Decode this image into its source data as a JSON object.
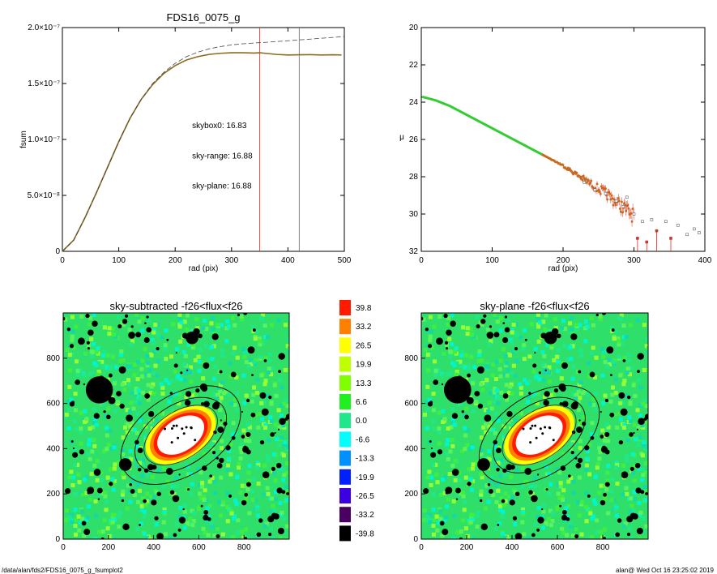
{
  "footer": {
    "path": "/data/alan/fds2/FDS16_0075_g_fsumplot2",
    "stamp": "alan@  Wed Oct 16 23:25:02 2019"
  },
  "colors": {
    "sky_range": "#e8281e",
    "sky_plane": "#33cc33",
    "fsum_curve": "#8a6b1f",
    "model": "#444444",
    "mu_points": "#c56a1c",
    "white_marker": "#666666"
  },
  "chart_data": [
    {
      "id": "fsum",
      "type": "line",
      "title": "FDS16_0075_g",
      "xlabel": "rad (pix)",
      "ylabel": "fsum",
      "xlim": [
        0,
        500
      ],
      "ylim": [
        0,
        2e-07
      ],
      "x_ticks": [
        0,
        100,
        200,
        300,
        400,
        500
      ],
      "y_ticks": [
        {
          "v": 0,
          "label": "0"
        },
        {
          "v": 5e-08,
          "label": "5.0×10⁻⁸"
        },
        {
          "v": 1e-07,
          "label": "1.0×10⁻⁷"
        },
        {
          "v": 1.5e-07,
          "label": "1.5×10⁻⁷"
        },
        {
          "v": 2e-07,
          "label": "2.0×10⁻⁷"
        }
      ],
      "series": [
        {
          "role": "measured",
          "x": [
            0,
            20,
            40,
            60,
            80,
            100,
            120,
            140,
            160,
            180,
            200,
            220,
            240,
            260,
            280,
            300,
            320,
            340,
            350,
            360,
            380,
            400,
            420,
            440,
            460,
            480,
            495
          ],
          "y": [
            0,
            1e-08,
            3e-08,
            5.2e-08,
            7.5e-08,
            9.8e-08,
            1.19e-07,
            1.36e-07,
            1.49e-07,
            1.59e-07,
            1.66e-07,
            1.71e-07,
            1.74e-07,
            1.76e-07,
            1.77e-07,
            1.775e-07,
            1.775e-07,
            1.772e-07,
            1.775e-07,
            1.77e-07,
            1.76e-07,
            1.755e-07,
            1.757e-07,
            1.758e-07,
            1.755e-07,
            1.757e-07,
            1.755e-07
          ]
        },
        {
          "role": "model",
          "style": "dashed",
          "x": [
            0,
            20,
            40,
            60,
            80,
            100,
            120,
            140,
            160,
            180,
            200,
            220,
            240,
            260,
            280,
            300,
            320,
            340,
            360,
            380,
            400,
            420,
            440,
            460,
            480,
            500
          ],
          "y": [
            0,
            1e-08,
            3e-08,
            5.2e-08,
            7.5e-08,
            9.8e-08,
            1.19e-07,
            1.36e-07,
            1.5e-07,
            1.6e-07,
            1.68e-07,
            1.74e-07,
            1.78e-07,
            1.81e-07,
            1.83e-07,
            1.845e-07,
            1.855e-07,
            1.862e-07,
            1.868e-07,
            1.875e-07,
            1.882e-07,
            1.89e-07,
            1.897e-07,
            1.905e-07,
            1.912e-07,
            1.92e-07
          ]
        }
      ],
      "vlines": [
        {
          "x": 350,
          "color": "#e8281e"
        },
        {
          "x": 420,
          "color": "#666666"
        }
      ],
      "annotations": [
        {
          "text": "skybox0: 16.83",
          "color": "#000000",
          "x": 210,
          "y": 1.1e-07
        },
        {
          "text": "sky-range: 16.88",
          "color": "#e8281e",
          "x": 210,
          "y": 8.3e-08
        },
        {
          "text": "sky-plane: 16.88",
          "color": "#33cc33",
          "x": 210,
          "y": 5.6e-08
        }
      ]
    },
    {
      "id": "mu",
      "type": "scatter",
      "title": "",
      "xlabel": "rad (pix)",
      "ylabel": "μ",
      "xlim": [
        0,
        400
      ],
      "ylim": [
        32,
        20
      ],
      "x_ticks": [
        0,
        100,
        200,
        300,
        400
      ],
      "y_ticks": [
        20,
        22,
        24,
        26,
        28,
        30,
        32
      ],
      "profile": {
        "x": [
          0,
          20,
          40,
          60,
          80,
          100,
          120,
          140,
          160,
          180,
          200,
          220,
          240,
          260,
          280,
          300
        ],
        "y": [
          23.7,
          23.9,
          24.2,
          24.6,
          25.0,
          25.4,
          25.8,
          26.2,
          26.6,
          27.0,
          27.4,
          27.9,
          28.4,
          28.9,
          29.5,
          30.1
        ]
      },
      "scatter_points": [
        {
          "x": 230,
          "y": 28.3
        },
        {
          "x": 245,
          "y": 28.7
        },
        {
          "x": 260,
          "y": 28.9
        },
        {
          "x": 275,
          "y": 29.3
        },
        {
          "x": 285,
          "y": 29.6
        },
        {
          "x": 290,
          "y": 29.1
        },
        {
          "x": 300,
          "y": 30.0
        },
        {
          "x": 305,
          "y": 31.3
        },
        {
          "x": 312,
          "y": 30.4
        },
        {
          "x": 318,
          "y": 31.5
        },
        {
          "x": 325,
          "y": 30.3
        },
        {
          "x": 332,
          "y": 30.9
        },
        {
          "x": 345,
          "y": 30.4
        },
        {
          "x": 352,
          "y": 31.3
        },
        {
          "x": 362,
          "y": 30.6
        },
        {
          "x": 375,
          "y": 31.1
        },
        {
          "x": 385,
          "y": 30.8
        },
        {
          "x": 392,
          "y": 31.0
        }
      ]
    },
    {
      "id": "sky_subtracted",
      "type": "heatmap",
      "title": "sky-subtracted -f26<flux<f26",
      "xlim": [
        0,
        1000
      ],
      "ylim": [
        0,
        1000
      ],
      "x_ticks": [
        0,
        200,
        400,
        600,
        800
      ],
      "y_ticks": [
        0,
        200,
        400,
        600,
        800
      ]
    },
    {
      "id": "sky_plane",
      "type": "heatmap",
      "title": "sky-plane -f26<flux<f26",
      "xlim": [
        0,
        1000
      ],
      "ylim": [
        0,
        1000
      ],
      "x_ticks": [
        0,
        200,
        400,
        600,
        800
      ],
      "y_ticks": [
        0,
        200,
        400,
        600,
        800
      ]
    },
    {
      "id": "colorbar",
      "type": "heatmap",
      "levels": [
        {
          "label": "39.8",
          "color": "#ff1a00"
        },
        {
          "label": "33.2",
          "color": "#ff8000"
        },
        {
          "label": "26.5",
          "color": "#ffff00"
        },
        {
          "label": "19.9",
          "color": "#bfff00"
        },
        {
          "label": "13.3",
          "color": "#80ff00"
        },
        {
          "label": "6.6",
          "color": "#20f020"
        },
        {
          "label": "0.0",
          "color": "#20e88a"
        },
        {
          "label": "-6.6",
          "color": "#00ffff"
        },
        {
          "label": "-13.3",
          "color": "#0090ff"
        },
        {
          "label": "-19.9",
          "color": "#0020ff"
        },
        {
          "label": "-26.5",
          "color": "#3d00e0"
        },
        {
          "label": "-33.2",
          "color": "#4a0060"
        },
        {
          "label": "-39.8",
          "color": "#000000"
        }
      ]
    }
  ]
}
